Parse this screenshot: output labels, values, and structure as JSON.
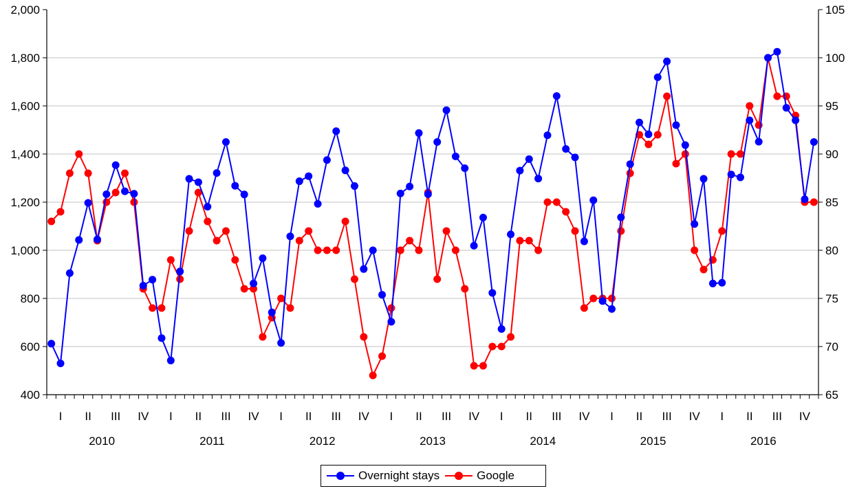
{
  "chart_data": {
    "type": "line",
    "title": "",
    "xlabel": "",
    "y_left": {
      "ylim": [
        400,
        2000
      ],
      "ticks": [
        "400",
        "600",
        "800",
        "1,000",
        "1,200",
        "1,400",
        "1,600",
        "1,800",
        "2,000"
      ]
    },
    "y_right": {
      "ylim": [
        65,
        105
      ],
      "ticks": [
        "65",
        "70",
        "75",
        "80",
        "85",
        "90",
        "95",
        "100",
        "105"
      ]
    },
    "grid": true,
    "legend_position": "bottom-center",
    "years": [
      "2010",
      "2011",
      "2012",
      "2013",
      "2014",
      "2015",
      "2016"
    ],
    "quarters": [
      "I",
      "II",
      "III",
      "IV"
    ],
    "series": [
      {
        "name": "Overnight stays",
        "axis": "left",
        "color": "#0000ff",
        "values": [
          612,
          530,
          905,
          1043,
          1197,
          1045,
          1233,
          1354,
          1245,
          1235,
          853,
          878,
          635,
          542,
          912,
          1297,
          1283,
          1181,
          1321,
          1450,
          1268,
          1232,
          862,
          967,
          742,
          615,
          1058,
          1287,
          1308,
          1193,
          1375,
          1495,
          1332,
          1267,
          922,
          1000,
          815,
          703,
          1236,
          1265,
          1487,
          1233,
          1450,
          1582,
          1390,
          1341,
          1019,
          1136,
          823,
          673,
          1066,
          1331,
          1379,
          1298,
          1478,
          1641,
          1421,
          1386,
          1037,
          1208,
          789,
          756,
          1137,
          1358,
          1531,
          1482,
          1719,
          1785,
          1520,
          1437,
          1109,
          1297,
          862,
          865,
          1315,
          1303,
          1540,
          1451,
          1800,
          1825,
          1592,
          1540,
          1212,
          1450
        ]
      },
      {
        "name": "Google",
        "axis": "right",
        "color": "#ff0000",
        "values": [
          83,
          84,
          88,
          90,
          88,
          81,
          85,
          86,
          88,
          85,
          76,
          74,
          74,
          79,
          77,
          82,
          86,
          83,
          81,
          82,
          79,
          76,
          76,
          71,
          73,
          75,
          74,
          81,
          82,
          80,
          80,
          80,
          83,
          77,
          71,
          67,
          69,
          74,
          80,
          81,
          80,
          86,
          77,
          82,
          80,
          76,
          68,
          68,
          70,
          70,
          71,
          81,
          81,
          80,
          85,
          85,
          84,
          82,
          74,
          75,
          75,
          75,
          82,
          88,
          92,
          91,
          92,
          96,
          89,
          90,
          80,
          78,
          79,
          82,
          90,
          90,
          95,
          93,
          100,
          96,
          96,
          94,
          85,
          85
        ]
      }
    ]
  }
}
